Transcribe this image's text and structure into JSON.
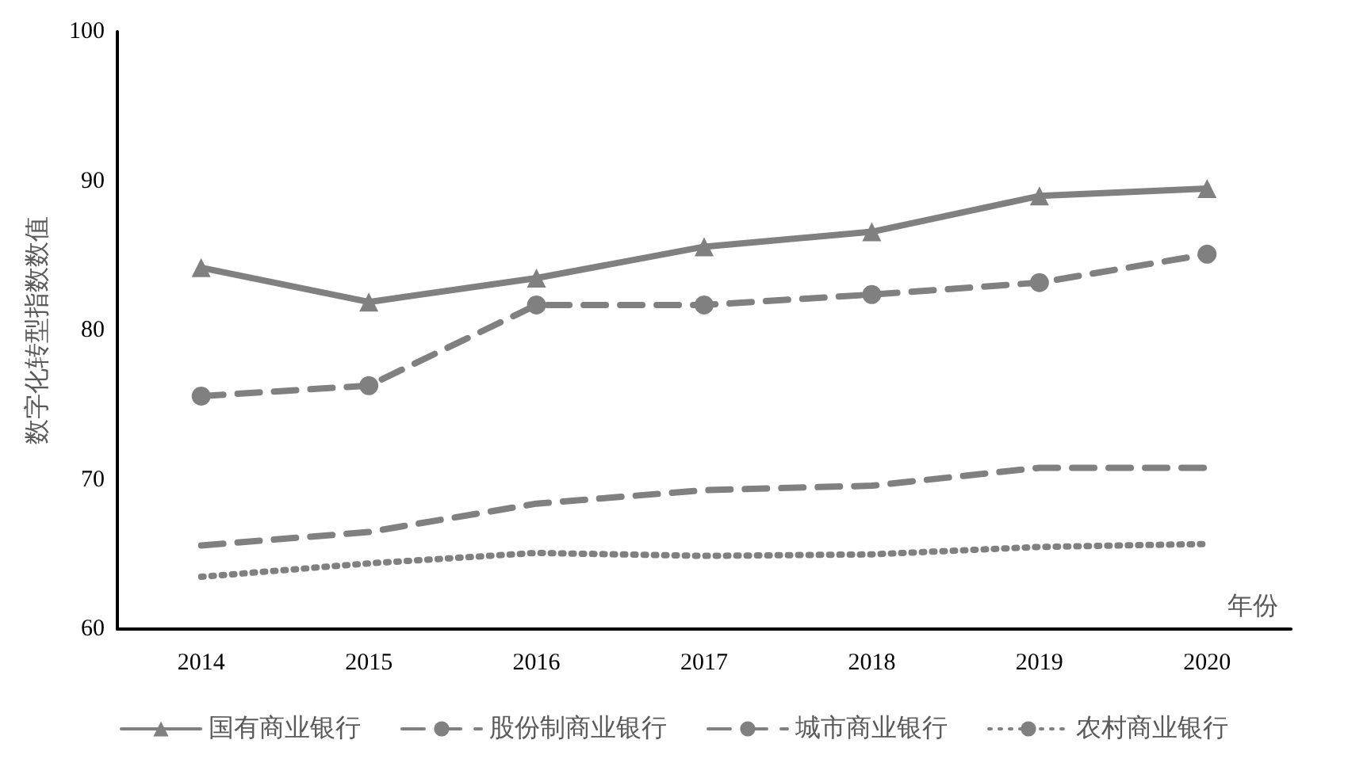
{
  "chart_data": {
    "type": "line",
    "xlabel": "年份",
    "ylabel": "数字化转型指数数值",
    "categories": [
      "2014",
      "2015",
      "2016",
      "2017",
      "2018",
      "2019",
      "2020"
    ],
    "series": [
      {
        "name": "国有商业银行",
        "color": "#808080",
        "marker": "triangle",
        "line_style": "solid",
        "values": [
          84.2,
          81.9,
          83.5,
          85.6,
          86.6,
          89.0,
          89.5
        ]
      },
      {
        "name": "股份制商业银行",
        "color": "#808080",
        "marker": "circle",
        "line_style": "dashed",
        "values": [
          75.6,
          76.3,
          81.7,
          81.7,
          82.4,
          83.2,
          85.1
        ]
      },
      {
        "name": "城市商业银行",
        "color": "#808080",
        "marker": "none",
        "line_style": "dashed",
        "values": [
          65.6,
          66.5,
          68.4,
          69.3,
          69.6,
          70.8,
          70.8
        ]
      },
      {
        "name": "农村商业银行",
        "color": "#808080",
        "marker": "none",
        "line_style": "dotted",
        "values": [
          63.5,
          64.4,
          65.1,
          64.9,
          65.0,
          65.5,
          65.7
        ]
      }
    ],
    "ylim": [
      60,
      100
    ],
    "yticks": [
      60,
      70,
      80,
      90,
      100
    ],
    "grid": false,
    "legend": "bottom"
  }
}
